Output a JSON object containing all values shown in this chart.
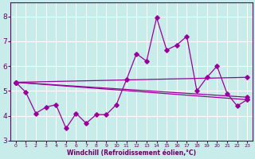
{
  "bg_color": "#c8ecea",
  "line_color": "#990099",
  "xlim": [
    -0.5,
    23.5
  ],
  "ylim": [
    3.0,
    8.55
  ],
  "yticks": [
    3,
    4,
    5,
    6,
    7,
    8
  ],
  "xticks": [
    0,
    1,
    2,
    3,
    4,
    5,
    6,
    7,
    8,
    9,
    10,
    11,
    12,
    13,
    14,
    15,
    16,
    17,
    18,
    19,
    20,
    21,
    22,
    23
  ],
  "xlabel": "Windchill (Refroidissement éolien,°C)",
  "main_series": [
    5.35,
    4.95,
    4.1,
    4.35,
    4.45,
    3.5,
    4.1,
    3.7,
    4.05,
    4.05,
    4.45,
    5.45,
    6.5,
    6.2,
    7.95,
    6.65,
    6.85,
    7.2,
    5.0,
    5.55,
    6.0,
    4.9,
    4.4,
    4.65
  ],
  "straight_lines": [
    {
      "x": [
        0,
        23
      ],
      "y": [
        5.35,
        4.65
      ]
    },
    {
      "x": [
        0,
        23
      ],
      "y": [
        5.35,
        4.75
      ]
    },
    {
      "x": [
        0,
        23
      ],
      "y": [
        5.35,
        5.55
      ]
    }
  ]
}
